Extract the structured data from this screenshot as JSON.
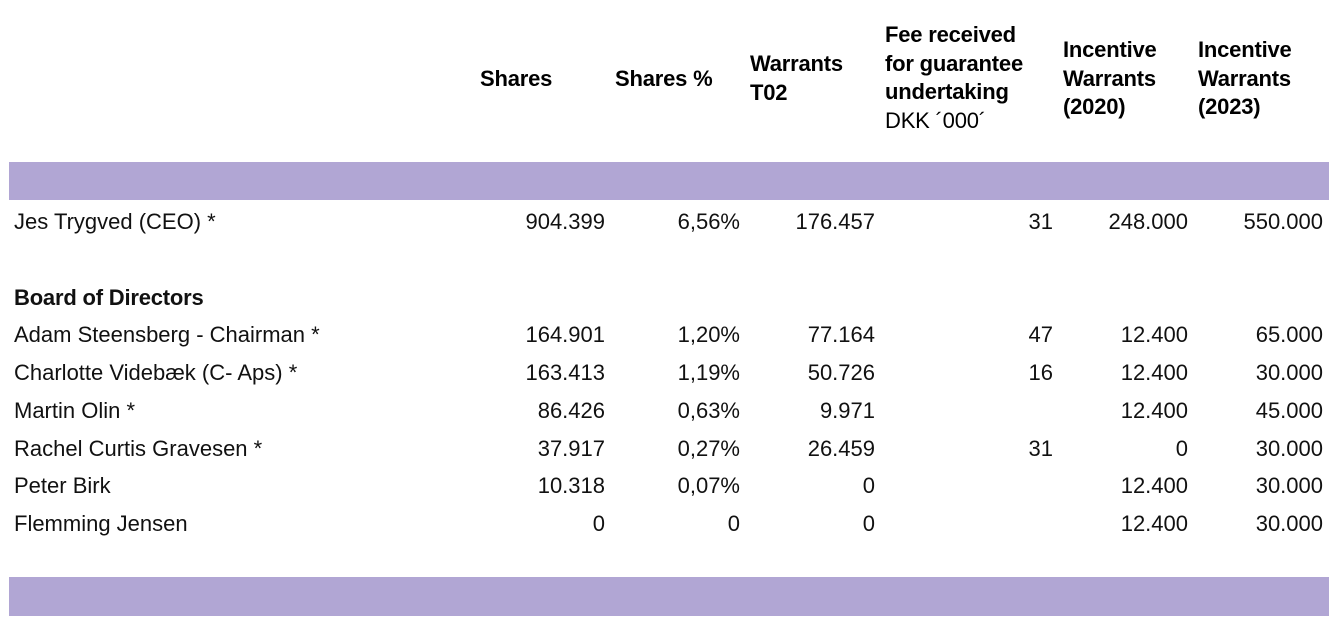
{
  "header": {
    "shares": "Shares",
    "shares_pct": "Shares %",
    "warrants_t02": "Warrants\nT02",
    "fee": "Fee received\nfor guarantee\nundertaking",
    "fee_unit": "DKK ´000´",
    "incentive_2020": "Incentive\nWarrants\n(2020)",
    "incentive_2023": "Incentive\nWarrants\n(2023)"
  },
  "ceo": {
    "name": "Jes Trygved (CEO) *",
    "shares": "904.399",
    "shares_pct": "6,56%",
    "warrants_t02": "176.457",
    "fee": "31",
    "incentive_2020": "248.000",
    "incentive_2023": "550.000"
  },
  "board_title": "Board of Directors",
  "board": [
    {
      "name": "Adam Steensberg - Chairman *",
      "shares": "164.901",
      "shares_pct": "1,20%",
      "warrants_t02": "77.164",
      "fee": "47",
      "incentive_2020": "12.400",
      "incentive_2023": "65.000"
    },
    {
      "name": "Charlotte Videbæk (C- Aps) *",
      "shares": "163.413",
      "shares_pct": "1,19%",
      "warrants_t02": "50.726",
      "fee": "16",
      "incentive_2020": "12.400",
      "incentive_2023": "30.000"
    },
    {
      "name": "Martin Olin *",
      "shares": "86.426",
      "shares_pct": "0,63%",
      "warrants_t02": "9.971",
      "fee": "",
      "incentive_2020": "12.400",
      "incentive_2023": "45.000"
    },
    {
      "name": "Rachel Curtis Gravesen *",
      "shares": "37.917",
      "shares_pct": "0,27%",
      "warrants_t02": "26.459",
      "fee": "31",
      "incentive_2020": "0",
      "incentive_2023": "30.000"
    },
    {
      "name": "Peter Birk",
      "shares": "10.318",
      "shares_pct": "0,07%",
      "warrants_t02": "0",
      "fee": "",
      "incentive_2020": "12.400",
      "incentive_2023": "30.000"
    },
    {
      "name": "Flemming Jensen",
      "shares": "0",
      "shares_pct": "0",
      "warrants_t02": "0",
      "fee": "",
      "incentive_2020": "12.400",
      "incentive_2023": "30.000"
    }
  ],
  "colors": {
    "band": "#b1a6d4",
    "text": "#111111"
  }
}
